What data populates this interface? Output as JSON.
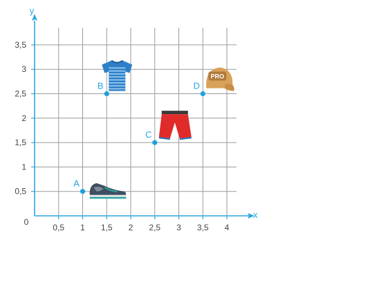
{
  "chart_data": {
    "type": "scatter",
    "xlabel": "x",
    "ylabel": "y",
    "xlim": [
      0,
      4
    ],
    "ylim": [
      0,
      3.5
    ],
    "origin_label": "0",
    "grid": true,
    "x_ticks": [
      "0,5",
      "1",
      "1,5",
      "2",
      "2,5",
      "3",
      "3,5",
      "4"
    ],
    "y_ticks": [
      "0,5",
      "1",
      "1,5",
      "2",
      "2,5",
      "3",
      "3,5"
    ],
    "points": [
      {
        "label": "A",
        "x": 1,
        "y": 0.5,
        "item": "sneaker-icon"
      },
      {
        "label": "B",
        "x": 1.5,
        "y": 2.5,
        "item": "tshirt-icon"
      },
      {
        "label": "C",
        "x": 2.5,
        "y": 1.5,
        "item": "shorts-icon"
      },
      {
        "label": "D",
        "x": 3.5,
        "y": 2.5,
        "item": "cap-icon"
      }
    ],
    "cap_text": "PRO",
    "colors": {
      "axis": "#2aa6df",
      "grid": "#9a9a9a",
      "point": "#1ba1e2"
    }
  }
}
